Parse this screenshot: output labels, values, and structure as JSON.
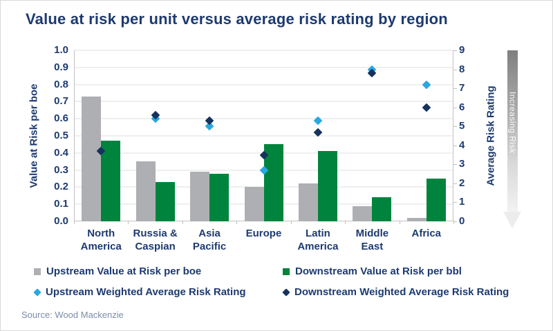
{
  "title": "Value at risk per unit versus average risk rating by region",
  "source_note": "Source: Wood Mackenzie",
  "risk_arrow_label": "Increasing Risk",
  "colors": {
    "navy_text": "#1d3a70",
    "upstream_bar": "#aeafb3",
    "downstream_bar": "#00843d",
    "upstream_diamond": "#29a8e0",
    "downstream_diamond": "#17335c",
    "gridline": "#efefef",
    "axis_line": "#c2c2c2",
    "source_text": "#7c8da6"
  },
  "chart_data": {
    "type": "combo: grouped bars on left axis + scatter diamonds on right axis",
    "categories": [
      "North America",
      "Russia & Caspian",
      "Asia Pacific",
      "Europe",
      "Latin America",
      "Middle East",
      "Africa"
    ],
    "category_label_lines": [
      [
        "North",
        "America"
      ],
      [
        "Russia &",
        "Caspian"
      ],
      [
        "Asia",
        "Pacific"
      ],
      [
        "Europe"
      ],
      [
        "Latin",
        "America"
      ],
      [
        "Middle",
        "East"
      ],
      [
        "Africa"
      ]
    ],
    "left_axis": {
      "label": "Value at Risk per boe",
      "min": 0,
      "max": 1.0,
      "ticks": [
        "1.0",
        "0.9",
        "0.8",
        "0.7",
        "0.6",
        "0.5",
        "0.4",
        "0.3",
        "0.2",
        "0.1",
        "0.0"
      ]
    },
    "right_axis": {
      "label": "Average Risk Rating",
      "min": 0,
      "max": 9,
      "ticks": [
        "9",
        "8",
        "7",
        "6",
        "5",
        "4",
        "3",
        "2",
        "1",
        "0"
      ]
    },
    "bar_series": [
      {
        "name": "Upstream Value at Risk per boe",
        "axis": "left",
        "color": "#aeafb3",
        "values": [
          0.73,
          0.35,
          0.29,
          0.2,
          0.22,
          0.09,
          0.02
        ]
      },
      {
        "name": "Downstream Value at Risk per bbl",
        "axis": "left",
        "color": "#00843d",
        "values": [
          0.47,
          0.23,
          0.28,
          0.45,
          0.41,
          0.14,
          0.25
        ]
      }
    ],
    "point_series": [
      {
        "name": "Upstream Weighted Average Risk Rating",
        "axis": "right",
        "marker": "diamond",
        "color": "#29a8e0",
        "values": [
          3.7,
          5.4,
          5.0,
          2.7,
          5.3,
          8.0,
          7.2
        ]
      },
      {
        "name": "Downstream Weighted Average Risk Rating",
        "axis": "right",
        "marker": "diamond",
        "color": "#17335c",
        "values": [
          3.7,
          5.6,
          5.3,
          3.5,
          4.7,
          7.8,
          6.0
        ]
      }
    ],
    "grid": "horizontal gridlines every 0.1 (left axis)",
    "legend_position": "bottom"
  },
  "legend": {
    "items": [
      {
        "label": "Upstream Value at Risk per boe",
        "marker": "square",
        "color": "#aeafb3"
      },
      {
        "label": "Downstream Value at Risk per bbl",
        "marker": "square",
        "color": "#00843d"
      },
      {
        "label": "Upstream Weighted Average Risk Rating",
        "marker": "diamond",
        "color": "#29a8e0"
      },
      {
        "label": "Downstream Weighted Average Risk Rating",
        "marker": "diamond",
        "color": "#17335c"
      }
    ]
  }
}
